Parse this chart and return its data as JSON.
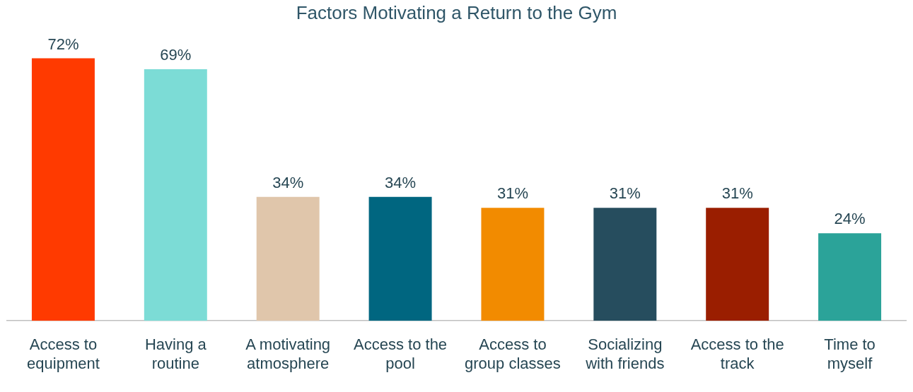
{
  "chart_data": {
    "type": "bar",
    "title": "Factors Motivating a Return to the Gym",
    "categories": [
      "Access to equipment",
      "Having a routine",
      "A motivating atmosphere",
      "Access to the pool",
      "Access to group classes",
      "Socializing with friends",
      "Access to the track",
      "Time to myself"
    ],
    "values": [
      72,
      69,
      34,
      34,
      31,
      31,
      31,
      24
    ],
    "value_labels": [
      "72%",
      "69%",
      "34%",
      "34%",
      "31%",
      "31%",
      "31%",
      "24%"
    ],
    "colors": [
      "#ff3a00",
      "#7cdcd6",
      "#e0c6ab",
      "#006680",
      "#f28b00",
      "#264d5e",
      "#9a1e00",
      "#2ba399"
    ],
    "grid": false,
    "legend": false
  }
}
